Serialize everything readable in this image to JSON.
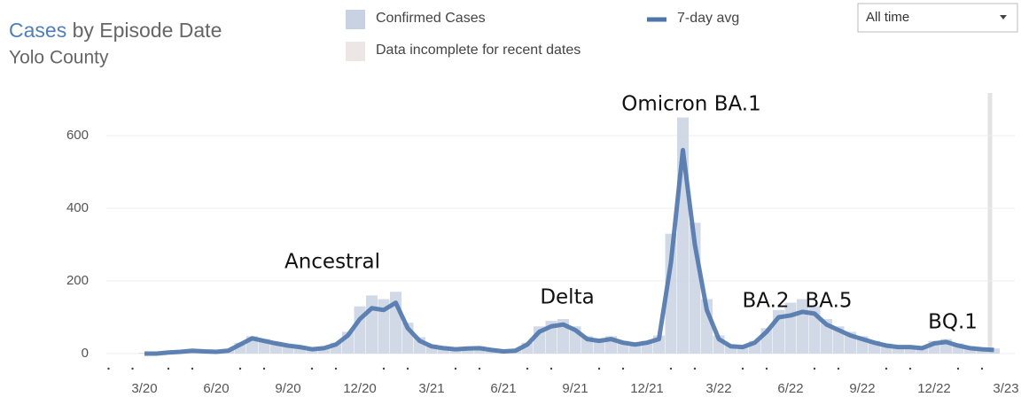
{
  "chart_data": {
    "type": "bar-line",
    "title_highlight": "Cases",
    "title_rest": "by Episode Date",
    "subtitle": "Yolo County",
    "dropdown": "All time",
    "legend": [
      {
        "name": "Confirmed Cases",
        "color": "#c9d2e3"
      },
      {
        "name": "7-day avg",
        "color": "#4f76ab"
      },
      {
        "name": "Data incomplete for recent dates",
        "color": "#ece6e6"
      }
    ],
    "annotations": [
      "Ancestral",
      "Delta",
      "Omicron BA.1",
      "BA.2",
      "BA.5",
      "BQ.1"
    ],
    "categories": [
      "3/20",
      null,
      null,
      null,
      null,
      null,
      "6/20",
      null,
      null,
      null,
      null,
      null,
      "9/20",
      null,
      null,
      null,
      null,
      null,
      "12/20",
      null,
      null,
      null,
      null,
      null,
      "3/21",
      null,
      null,
      null,
      null,
      null,
      "6/21",
      null,
      null,
      null,
      null,
      null,
      "9/21",
      null,
      null,
      null,
      null,
      null,
      "12/21",
      null,
      null,
      null,
      null,
      null,
      "3/22",
      null,
      null,
      null,
      null,
      null,
      "6/22",
      null,
      null,
      null,
      null,
      null,
      "9/22",
      null,
      null,
      null,
      null,
      null,
      "12/22",
      null,
      null,
      null,
      null,
      null,
      "3/23"
    ],
    "series": [
      {
        "name": "Confirmed Cases",
        "color": "#c9d2e3",
        "values": [
          2,
          2,
          5,
          7,
          10,
          8,
          7,
          10,
          30,
          48,
          40,
          32,
          25,
          20,
          15,
          18,
          30,
          60,
          130,
          160,
          150,
          170,
          85,
          45,
          25,
          20,
          15,
          18,
          20,
          14,
          8,
          10,
          30,
          75,
          90,
          95,
          75,
          48,
          40,
          48,
          35,
          30,
          35,
          50,
          330,
          650,
          360,
          150,
          50,
          25,
          20,
          35,
          70,
          120,
          140,
          150,
          130,
          95,
          75,
          60,
          48,
          35,
          28,
          22,
          22,
          20,
          35,
          40,
          28,
          20,
          15,
          14,
          null
        ]
      },
      {
        "name": "7-day avg",
        "color": "#4f76ab",
        "values": [
          0,
          0,
          3,
          5,
          8,
          6,
          5,
          8,
          25,
          42,
          35,
          28,
          22,
          18,
          12,
          15,
          25,
          50,
          95,
          125,
          120,
          140,
          70,
          35,
          20,
          15,
          12,
          14,
          15,
          10,
          6,
          8,
          25,
          60,
          75,
          80,
          65,
          40,
          35,
          40,
          30,
          25,
          30,
          40,
          250,
          560,
          300,
          120,
          40,
          20,
          18,
          30,
          60,
          100,
          105,
          115,
          110,
          80,
          65,
          50,
          40,
          30,
          22,
          18,
          18,
          15,
          28,
          32,
          22,
          15,
          12,
          10,
          null
        ]
      }
    ],
    "ylim": [
      0,
      700
    ],
    "yticks": [
      0,
      200,
      400,
      600
    ],
    "grid": true
  }
}
